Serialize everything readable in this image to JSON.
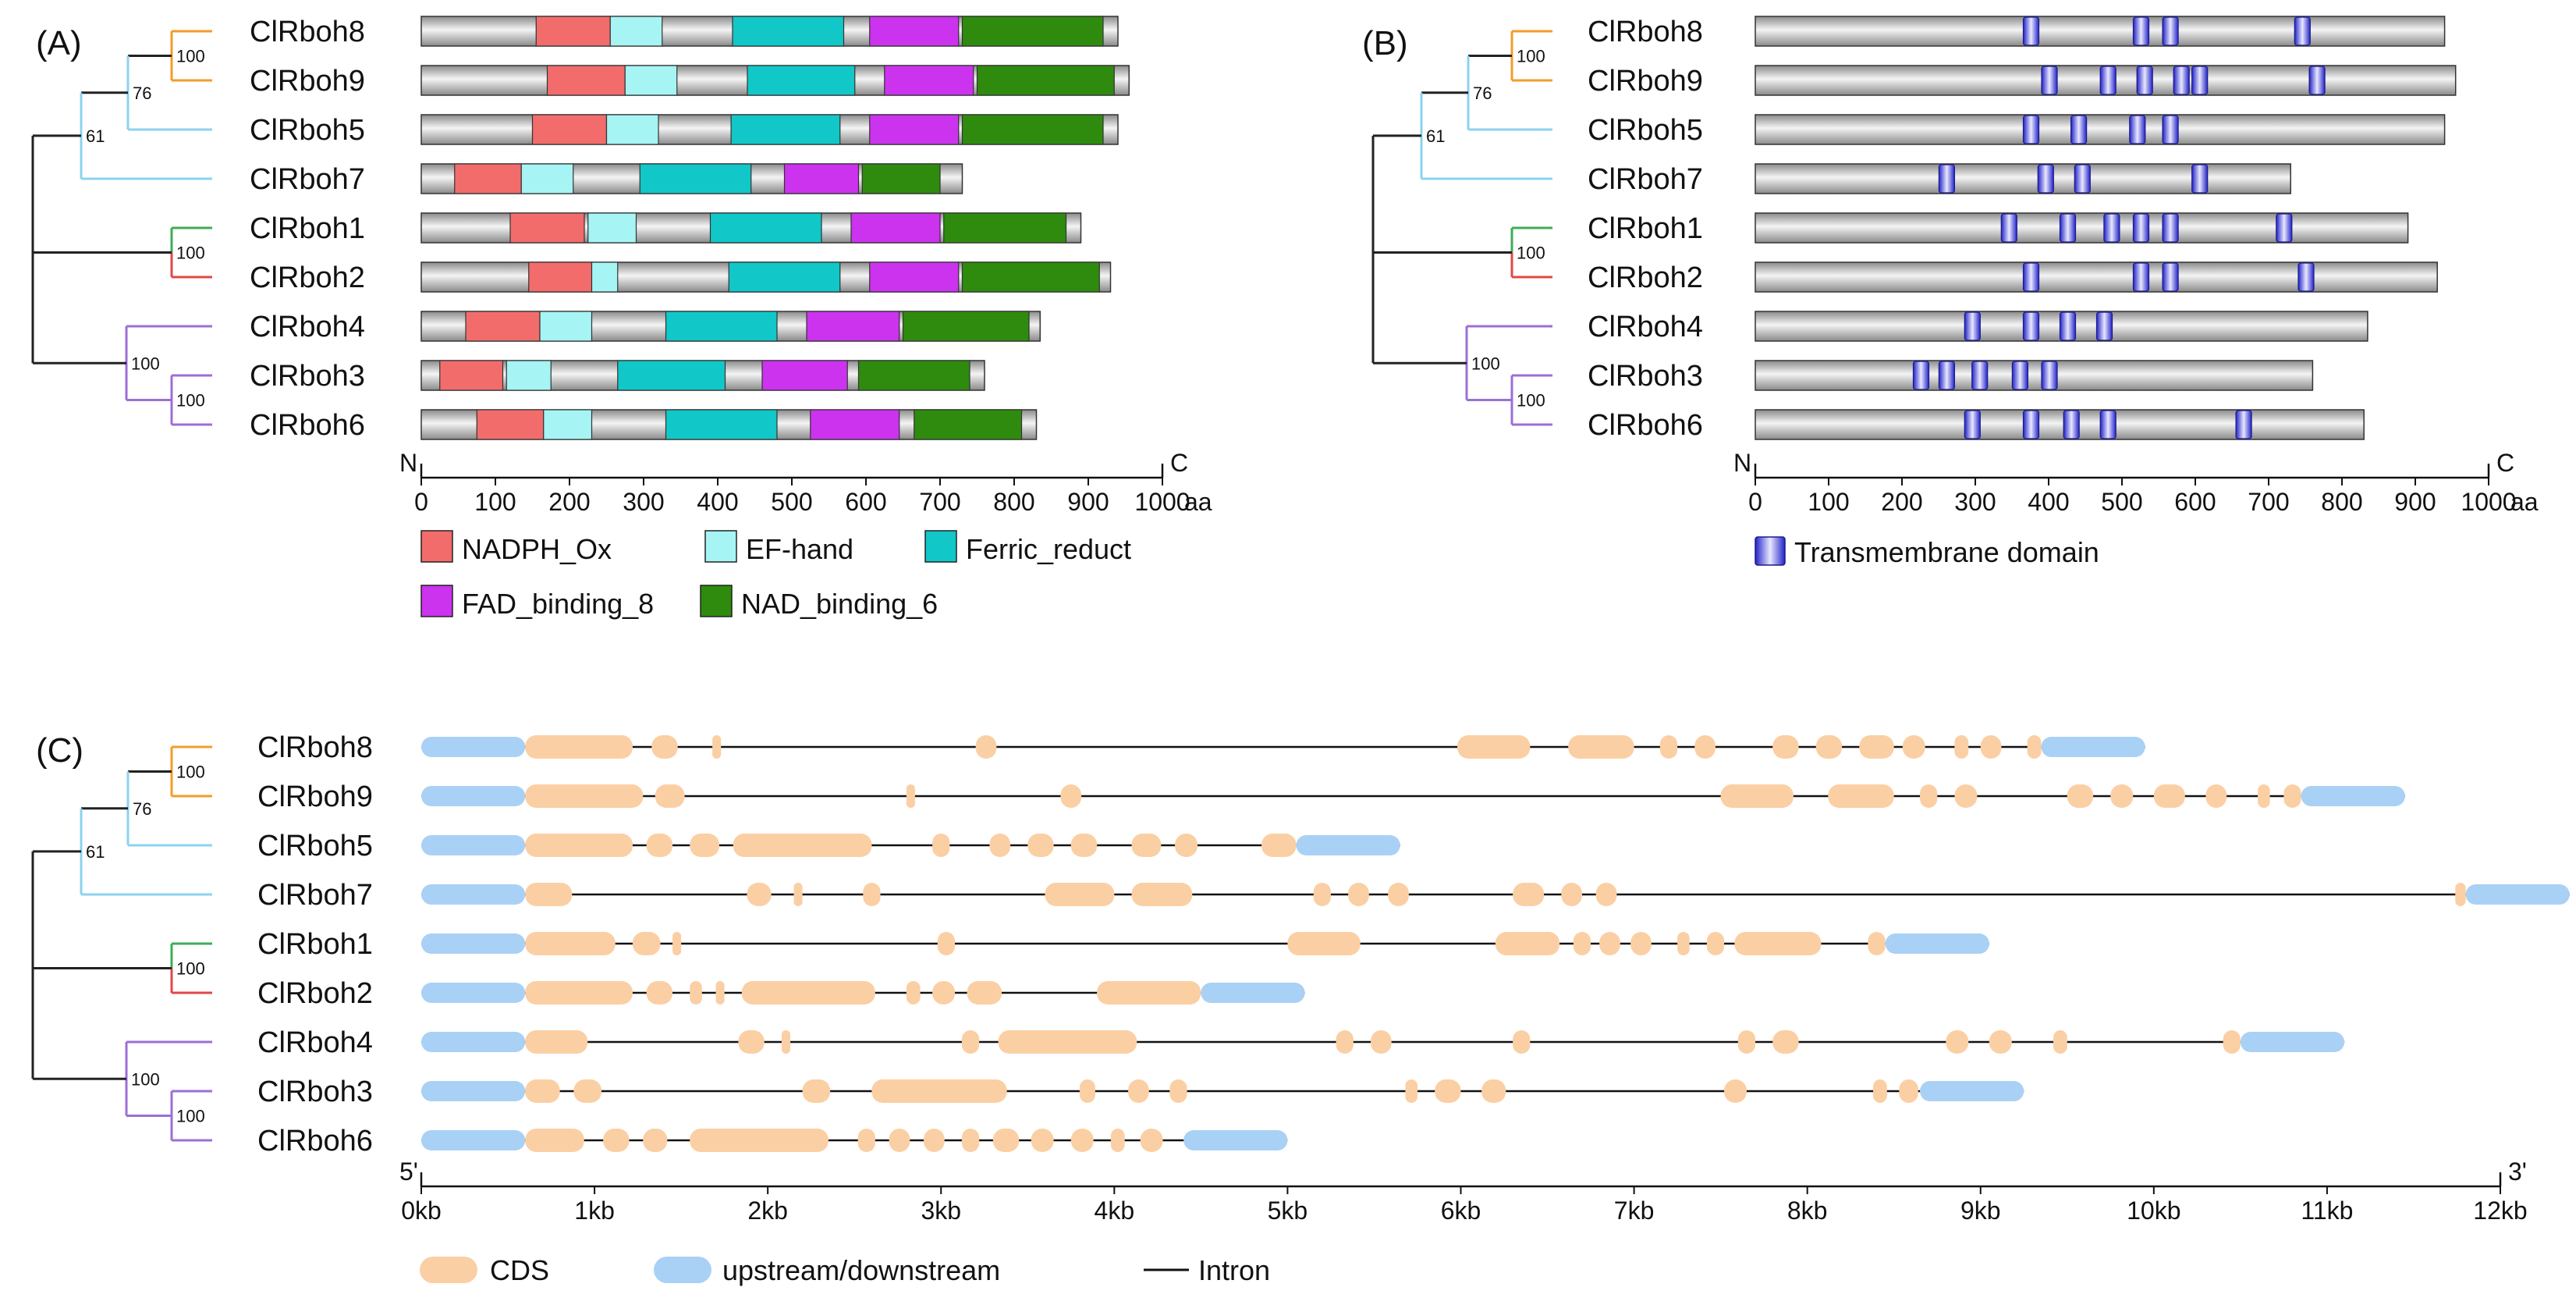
{
  "panels": {
    "a": {
      "label": "(A)"
    },
    "b": {
      "label": "(B)"
    },
    "c": {
      "label": "(C)"
    }
  },
  "genes": [
    {
      "name": "ClRboh8",
      "length": 940
    },
    {
      "name": "ClRboh9",
      "length": 955
    },
    {
      "name": "ClRboh5",
      "length": 940
    },
    {
      "name": "ClRboh7",
      "length": 730
    },
    {
      "name": "ClRboh1",
      "length": 890
    },
    {
      "name": "ClRboh2",
      "length": 930
    },
    {
      "name": "ClRboh4",
      "length": 835
    },
    {
      "name": "ClRboh3",
      "length": 760
    },
    {
      "name": "ClRboh6",
      "length": 830
    }
  ],
  "tree": {
    "bootstrap": {
      "b89": "100",
      "b895": "76",
      "b8957": "61",
      "b12": "100",
      "b436": "100",
      "b36": "100"
    },
    "colors": {
      "orange": "#F39C2A",
      "lightblue": "#8BD3EE",
      "green": "#3DAE57",
      "red": "#E04848",
      "purple": "#9B6FD6",
      "black": "#222222"
    }
  },
  "domain_legend": {
    "nadph": {
      "label": "NADPH_Ox",
      "color": "#F26C6C"
    },
    "ef": {
      "label": "EF-hand",
      "color": "#A6F4F4"
    },
    "ferric": {
      "label": "Ferric_reduct",
      "color": "#11C7C7"
    },
    "fad": {
      "label": "FAD_binding_8",
      "color": "#CC33EE"
    },
    "nad": {
      "label": "NAD_binding_6",
      "color": "#2E8B0E"
    }
  },
  "tm_legend": {
    "label": "Transmembrane domain",
    "color": "#3A3AE0"
  },
  "protein_axis": {
    "n_label": "N",
    "c_label": "C",
    "unit": "aa",
    "ticks": [
      "0",
      "100",
      "200",
      "300",
      "400",
      "500",
      "600",
      "700",
      "800",
      "900",
      "1000"
    ]
  },
  "gene_axis": {
    "five_prime": "5'",
    "three_prime": "3'",
    "ticks": [
      "0kb",
      "1kb",
      "2kb",
      "3kb",
      "4kb",
      "5kb",
      "6kb",
      "7kb",
      "8kb",
      "9kb",
      "10kb",
      "11kb",
      "12kb"
    ]
  },
  "structure_legend": {
    "cds": {
      "label": "CDS",
      "color": "#FBCFA4"
    },
    "utr": {
      "label": "upstream/downstream",
      "color": "#A9D1F5"
    },
    "intron": {
      "label": "Intron"
    }
  },
  "chart_data": {
    "type": "gene_structure",
    "domains_aa": [
      {
        "gene": "ClRboh8",
        "length": 940,
        "domains": [
          [
            "nadph",
            155,
            255
          ],
          [
            "ef",
            255,
            325
          ],
          [
            "ferric",
            420,
            570
          ],
          [
            "fad",
            605,
            725
          ],
          [
            "nad",
            730,
            920
          ]
        ]
      },
      {
        "gene": "ClRboh9",
        "length": 955,
        "domains": [
          [
            "nadph",
            170,
            275
          ],
          [
            "ef",
            275,
            345
          ],
          [
            "ferric",
            440,
            585
          ],
          [
            "fad",
            625,
            745
          ],
          [
            "nad",
            750,
            935
          ]
        ]
      },
      {
        "gene": "ClRboh5",
        "length": 940,
        "domains": [
          [
            "nadph",
            150,
            250
          ],
          [
            "ef",
            250,
            320
          ],
          [
            "ferric",
            418,
            565
          ],
          [
            "fad",
            605,
            725
          ],
          [
            "nad",
            730,
            920
          ]
        ]
      },
      {
        "gene": "ClRboh7",
        "length": 730,
        "domains": [
          [
            "nadph",
            45,
            135
          ],
          [
            "ef",
            135,
            205
          ],
          [
            "ferric",
            295,
            445
          ],
          [
            "fad",
            490,
            590
          ],
          [
            "nad",
            595,
            700
          ]
        ]
      },
      {
        "gene": "ClRboh1",
        "length": 890,
        "domains": [
          [
            "nadph",
            120,
            220
          ],
          [
            "ef",
            225,
            290
          ],
          [
            "ferric",
            390,
            540
          ],
          [
            "fad",
            580,
            700
          ],
          [
            "nad",
            705,
            870
          ]
        ]
      },
      {
        "gene": "ClRboh2",
        "length": 930,
        "domains": [
          [
            "nadph",
            145,
            230
          ],
          [
            "ef",
            230,
            265
          ],
          [
            "ferric",
            415,
            565
          ],
          [
            "fad",
            605,
            725
          ],
          [
            "nad",
            730,
            915
          ]
        ]
      },
      {
        "gene": "ClRboh4",
        "length": 835,
        "domains": [
          [
            "nadph",
            60,
            160
          ],
          [
            "ef",
            160,
            230
          ],
          [
            "ferric",
            330,
            480
          ],
          [
            "fad",
            520,
            645
          ],
          [
            "nad",
            650,
            820
          ]
        ]
      },
      {
        "gene": "ClRboh3",
        "length": 760,
        "domains": [
          [
            "nadph",
            25,
            110
          ],
          [
            "ef",
            115,
            175
          ],
          [
            "ferric",
            265,
            410
          ],
          [
            "fad",
            460,
            575
          ],
          [
            "nad",
            590,
            740
          ]
        ]
      },
      {
        "gene": "ClRboh6",
        "length": 830,
        "domains": [
          [
            "nadph",
            75,
            165
          ],
          [
            "ef",
            165,
            230
          ],
          [
            "ferric",
            330,
            480
          ],
          [
            "fad",
            525,
            645
          ],
          [
            "nad",
            665,
            810
          ]
        ]
      }
    ],
    "tm_positions_aa": [
      {
        "gene": "ClRboh8",
        "tm": [
          375,
          525,
          565,
          745
        ]
      },
      {
        "gene": "ClRboh9",
        "tm": [
          400,
          480,
          530,
          580,
          605,
          765
        ]
      },
      {
        "gene": "ClRboh5",
        "tm": [
          375,
          440,
          520,
          565
        ]
      },
      {
        "gene": "ClRboh7",
        "tm": [
          260,
          395,
          445,
          605
        ]
      },
      {
        "gene": "ClRboh1",
        "tm": [
          345,
          425,
          485,
          525,
          565,
          720
        ]
      },
      {
        "gene": "ClRboh2",
        "tm": [
          375,
          525,
          565,
          750
        ]
      },
      {
        "gene": "ClRboh4",
        "tm": [
          295,
          375,
          425,
          475
        ]
      },
      {
        "gene": "ClRboh3",
        "tm": [
          225,
          260,
          305,
          360,
          400
        ]
      },
      {
        "gene": "ClRboh6",
        "tm": [
          295,
          375,
          430,
          480,
          665
        ]
      }
    ],
    "structure_kb": [
      {
        "gene": "ClRboh8",
        "utr": [
          [
            0,
            0.6
          ],
          [
            9.35,
            9.95
          ]
        ],
        "cds": [
          [
            0.6,
            1.22
          ],
          [
            1.33,
            1.48
          ],
          [
            1.68,
            1.73
          ],
          [
            3.2,
            3.32
          ],
          [
            5.98,
            6.4
          ],
          [
            6.62,
            7.0
          ],
          [
            7.15,
            7.25
          ],
          [
            7.35,
            7.47
          ],
          [
            7.8,
            7.95
          ],
          [
            8.05,
            8.2
          ],
          [
            8.3,
            8.5
          ],
          [
            8.55,
            8.68
          ],
          [
            8.85,
            8.93
          ],
          [
            9.0,
            9.12
          ],
          [
            9.27,
            9.35
          ]
        ]
      },
      {
        "gene": "ClRboh9",
        "utr": [
          [
            0,
            0.6
          ],
          [
            10.85,
            11.45
          ]
        ],
        "cds": [
          [
            0.6,
            1.28
          ],
          [
            1.35,
            1.52
          ],
          [
            2.8,
            2.85
          ],
          [
            3.69,
            3.81
          ],
          [
            7.5,
            7.92
          ],
          [
            8.12,
            8.5
          ],
          [
            8.65,
            8.75
          ],
          [
            8.85,
            8.98
          ],
          [
            9.5,
            9.65
          ],
          [
            9.75,
            9.88
          ],
          [
            10.0,
            10.18
          ],
          [
            10.3,
            10.42
          ],
          [
            10.6,
            10.67
          ],
          [
            10.75,
            10.85
          ]
        ]
      },
      {
        "gene": "ClRboh5",
        "utr": [
          [
            0,
            0.6
          ],
          [
            5.05,
            5.65
          ]
        ],
        "cds": [
          [
            0.6,
            1.22
          ],
          [
            1.3,
            1.45
          ],
          [
            1.55,
            1.72
          ],
          [
            1.8,
            2.6
          ],
          [
            2.95,
            3.05
          ],
          [
            3.28,
            3.4
          ],
          [
            3.5,
            3.65
          ],
          [
            3.75,
            3.9
          ],
          [
            4.1,
            4.27
          ],
          [
            4.35,
            4.48
          ],
          [
            4.85,
            5.05
          ]
        ]
      },
      {
        "gene": "ClRboh7",
        "utr": [
          [
            0,
            0.6
          ],
          [
            11.8,
            12.4
          ]
        ],
        "cds": [
          [
            0.6,
            0.87
          ],
          [
            1.88,
            2.02
          ],
          [
            2.15,
            2.2
          ],
          [
            2.55,
            2.65
          ],
          [
            3.6,
            4.0
          ],
          [
            4.1,
            4.45
          ],
          [
            5.15,
            5.25
          ],
          [
            5.35,
            5.47
          ],
          [
            5.58,
            5.7
          ],
          [
            6.3,
            6.48
          ],
          [
            6.58,
            6.7
          ],
          [
            6.78,
            6.9
          ],
          [
            11.74,
            11.8
          ]
        ]
      },
      {
        "gene": "ClRboh1",
        "utr": [
          [
            0,
            0.6
          ],
          [
            8.45,
            9.05
          ]
        ],
        "cds": [
          [
            0.6,
            1.12
          ],
          [
            1.22,
            1.38
          ],
          [
            1.45,
            1.5
          ],
          [
            2.98,
            3.08
          ],
          [
            5.0,
            5.42
          ],
          [
            6.2,
            6.57
          ],
          [
            6.65,
            6.75
          ],
          [
            6.8,
            6.92
          ],
          [
            6.98,
            7.1
          ],
          [
            7.25,
            7.32
          ],
          [
            7.42,
            7.52
          ],
          [
            7.58,
            8.08
          ],
          [
            8.35,
            8.45
          ]
        ]
      },
      {
        "gene": "ClRboh2",
        "utr": [
          [
            0,
            0.6
          ],
          [
            4.5,
            5.1
          ]
        ],
        "cds": [
          [
            0.6,
            1.22
          ],
          [
            1.3,
            1.45
          ],
          [
            1.55,
            1.62
          ],
          [
            1.7,
            1.75
          ],
          [
            1.85,
            2.62
          ],
          [
            2.8,
            2.88
          ],
          [
            2.95,
            3.08
          ],
          [
            3.15,
            3.35
          ],
          [
            3.9,
            4.5
          ]
        ]
      },
      {
        "gene": "ClRboh4",
        "utr": [
          [
            0,
            0.6
          ],
          [
            10.5,
            11.1
          ]
        ],
        "cds": [
          [
            0.6,
            0.96
          ],
          [
            1.83,
            1.98
          ],
          [
            2.08,
            2.13
          ],
          [
            3.12,
            3.22
          ],
          [
            3.33,
            4.13
          ],
          [
            5.28,
            5.38
          ],
          [
            5.48,
            5.6
          ],
          [
            6.3,
            6.4
          ],
          [
            7.6,
            7.7
          ],
          [
            7.8,
            7.95
          ],
          [
            8.8,
            8.93
          ],
          [
            9.05,
            9.18
          ],
          [
            9.42,
            9.5
          ],
          [
            10.4,
            10.5
          ]
        ]
      },
      {
        "gene": "ClRboh3",
        "utr": [
          [
            0,
            0.6
          ],
          [
            8.65,
            9.25
          ]
        ],
        "cds": [
          [
            0.6,
            0.8
          ],
          [
            0.88,
            1.04
          ],
          [
            2.2,
            2.36
          ],
          [
            2.6,
            3.38
          ],
          [
            3.8,
            3.89
          ],
          [
            4.08,
            4.2
          ],
          [
            4.32,
            4.42
          ],
          [
            5.68,
            5.75
          ],
          [
            5.85,
            6.0
          ],
          [
            6.12,
            6.26
          ],
          [
            7.52,
            7.65
          ],
          [
            8.38,
            8.46
          ],
          [
            8.53,
            8.64
          ]
        ]
      },
      {
        "gene": "ClRboh6",
        "utr": [
          [
            0,
            0.6
          ],
          [
            4.4,
            5.0
          ]
        ],
        "cds": [
          [
            0.6,
            0.94
          ],
          [
            1.05,
            1.2
          ],
          [
            1.28,
            1.42
          ],
          [
            1.55,
            2.35
          ],
          [
            2.52,
            2.62
          ],
          [
            2.7,
            2.82
          ],
          [
            2.9,
            3.02
          ],
          [
            3.12,
            3.22
          ],
          [
            3.3,
            3.45
          ],
          [
            3.52,
            3.65
          ],
          [
            3.75,
            3.88
          ],
          [
            3.98,
            4.06
          ],
          [
            4.15,
            4.28
          ]
        ]
      }
    ]
  }
}
